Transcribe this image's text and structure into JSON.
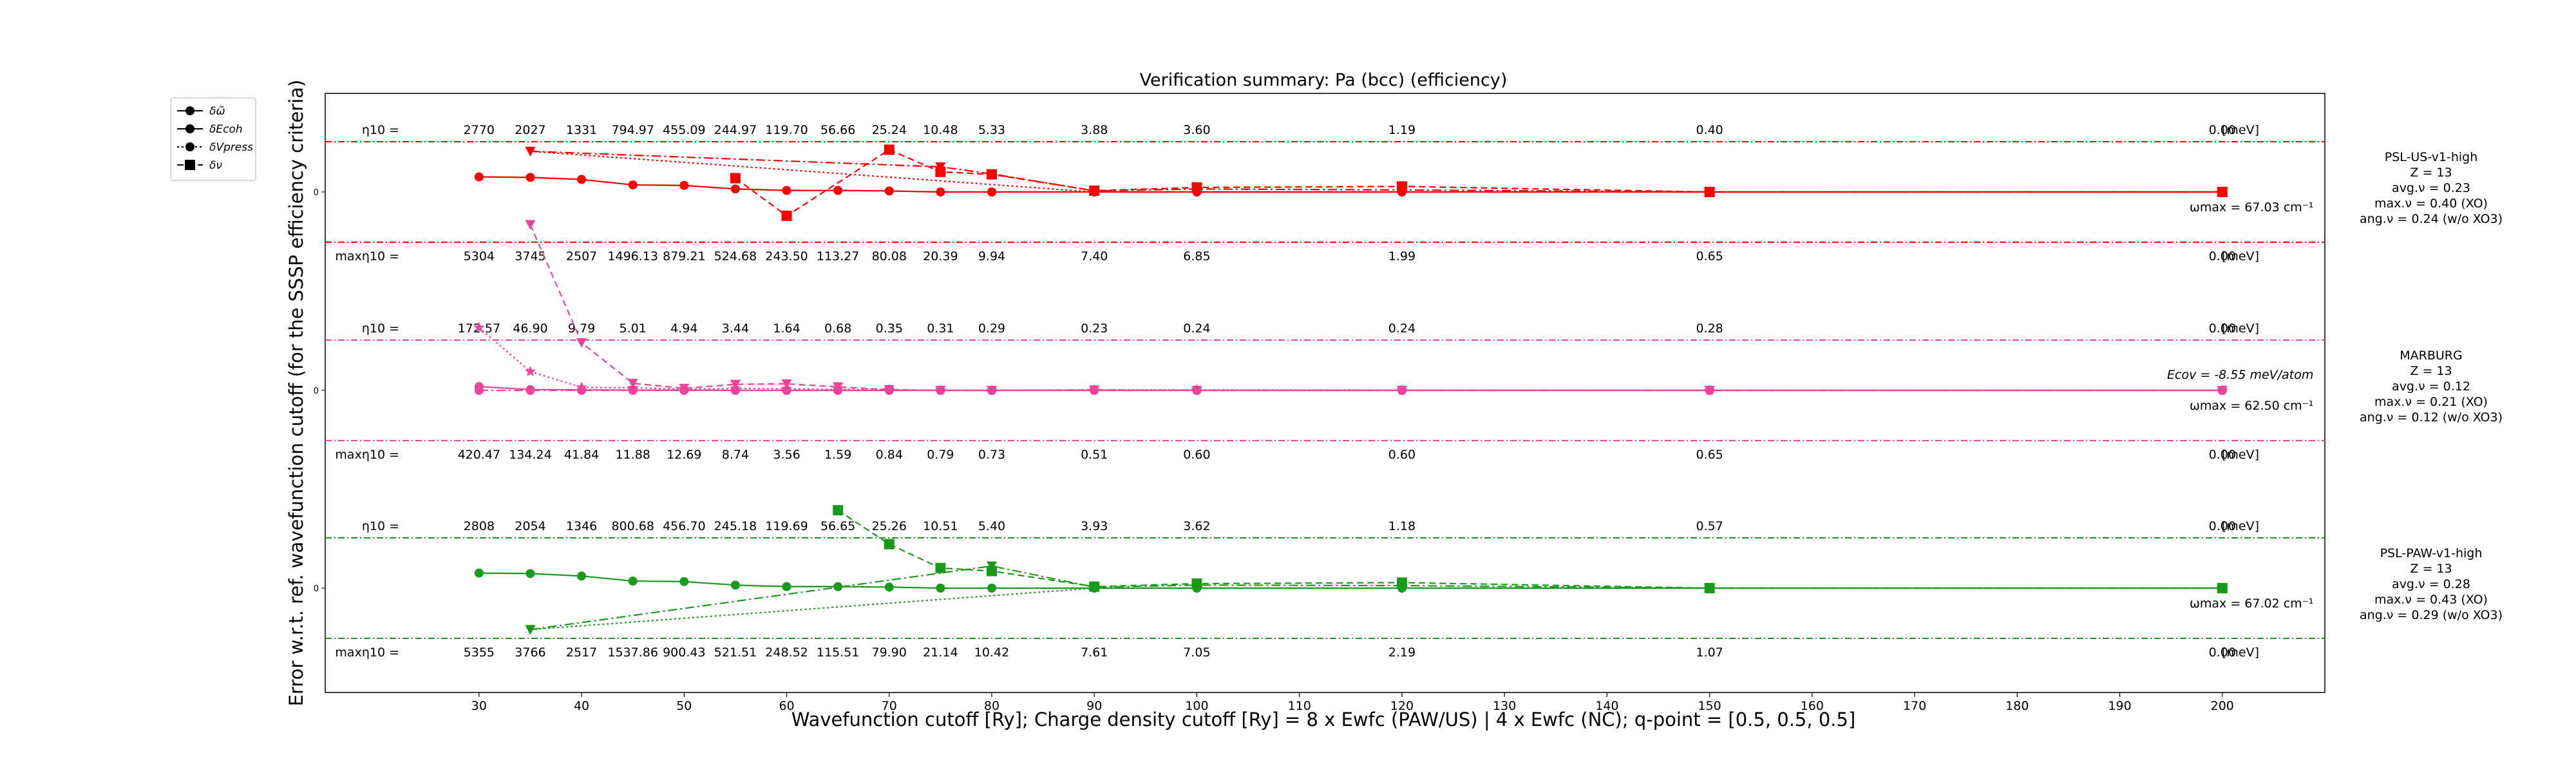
{
  "chart_data": {
    "type": "line",
    "title": "Verification summary: Pa (bcc) (efficiency)",
    "xlabel": "Wavefunction cutoff [Ry]; Charge density cutoff [Ry] = 8 x Ewfc (PAW/US) | 4 x Ewfc (NC); q-point = [0.5, 0.5, 0.5]",
    "ylabel": "Error w.r.t. ref. wavefunction cutoff (for the SSSP efficiency criteria)",
    "xlim": [
      15,
      210
    ],
    "x_ticks": [
      30,
      40,
      50,
      60,
      70,
      80,
      90,
      100,
      110,
      120,
      130,
      140,
      150,
      160,
      170,
      180,
      190,
      200
    ],
    "zero_label": "0",
    "unit_label": "[meV]",
    "eta_label": "η10 =",
    "max_eta_label": "maxη10 =",
    "legend": {
      "position": "top-left outside",
      "entries": [
        {
          "label": "δω̃",
          "style": "solid",
          "marker": "circle"
        },
        {
          "label": "δEcoh",
          "style": "dashdot",
          "marker": "circle"
        },
        {
          "label": "δVpress",
          "style": "dotted",
          "marker": "circle"
        },
        {
          "label": "δν",
          "style": "dashed",
          "marker": "square"
        }
      ]
    },
    "panels": [
      {
        "name": "PSL-US-v1-high",
        "color": "#ff0000",
        "side_info": [
          "PSL-US-v1-high",
          "Z = 13",
          "avg.ν = 0.23",
          "max.ν = 0.40 (XO)",
          "ang.ν = 0.24 (w/o XO3)"
        ],
        "right_note": "ωmax = 67.03 cm⁻¹",
        "eta": [
          "2770",
          "2027",
          "1331",
          "794.97",
          "455.09",
          "244.97",
          "119.70",
          "56.66",
          "25.24",
          "10.48",
          "5.33",
          "3.88",
          "3.60",
          "1.19",
          "0.40",
          "0.00"
        ],
        "max_eta": [
          "5304",
          "3745",
          "2507",
          "1496.13",
          "879.21",
          "524.68",
          "243.50",
          "113.27",
          "80.08",
          "20.39",
          "9.94",
          "7.40",
          "6.85",
          "1.99",
          "0.65",
          "0.00"
        ],
        "series": [
          {
            "name": "δω̃",
            "style": "solid",
            "marker": "circle",
            "x": [
              30,
              35,
              40,
              45,
              50,
              55,
              60,
              65,
              70,
              75,
              80,
              90,
              100,
              120,
              150,
              200
            ],
            "y": [
              0.6,
              0.58,
              0.5,
              0.28,
              0.26,
              0.12,
              0.06,
              0.06,
              0.04,
              0.0,
              0.0,
              0.0,
              0.0,
              0.0,
              0.0,
              0.0
            ]
          },
          {
            "name": "δEcoh",
            "style": "dashdot",
            "marker": "triangle-down",
            "x": [
              35,
              75,
              80,
              90,
              100,
              120,
              150,
              200
            ],
            "y": [
              1.62,
              1.0,
              0.72,
              0.04,
              0.12,
              0.08,
              0.0,
              0.0
            ]
          },
          {
            "name": "δVpress",
            "style": "dotted",
            "marker": "triangle-down",
            "x": [
              35,
              90,
              100,
              120,
              150,
              200
            ],
            "y": [
              1.62,
              0.0,
              0.0,
              0.0,
              0.0,
              0.0
            ]
          },
          {
            "name": "δν",
            "style": "dashed",
            "marker": "square",
            "x": [
              55,
              60,
              70,
              75,
              80,
              90,
              100,
              120,
              150,
              200
            ],
            "y": [
              0.55,
              -0.95,
              1.68,
              0.8,
              0.7,
              0.05,
              0.18,
              0.22,
              0.0,
              0.0
            ]
          }
        ]
      },
      {
        "name": "MARBURG",
        "color": "#e8459b",
        "side_info": [
          "MARBURG",
          "Z = 13",
          "avg.ν = 0.12",
          "max.ν = 0.21 (XO)",
          "ang.ν = 0.12 (w/o XO3)"
        ],
        "right_note": "ωmax = 62.50 cm⁻¹",
        "right_note_2": "Ecov = -8.55 meV/atom",
        "eta": [
          "172.57",
          "46.90",
          "9.79",
          "5.01",
          "4.94",
          "3.44",
          "1.64",
          "0.68",
          "0.35",
          "0.31",
          "0.29",
          "0.23",
          "0.24",
          "0.24",
          "0.28",
          "0.00"
        ],
        "max_eta": [
          "420.47",
          "134.24",
          "41.84",
          "11.88",
          "12.69",
          "8.74",
          "3.56",
          "1.59",
          "0.84",
          "0.79",
          "0.73",
          "0.51",
          "0.60",
          "0.60",
          "0.65",
          "0.00"
        ],
        "series": [
          {
            "name": "δω̃",
            "style": "solid",
            "marker": "circle",
            "x": [
              30,
              35,
              40,
              45,
              50,
              55,
              60,
              65,
              70,
              75,
              80,
              90,
              100,
              120,
              150,
              200
            ],
            "y": [
              0.15,
              0.03,
              0.02,
              0.01,
              0.01,
              0.0,
              0.0,
              0.0,
              0.0,
              0.0,
              0.0,
              0.0,
              0.0,
              0.0,
              0.0,
              0.0
            ]
          },
          {
            "name": "δEcoh",
            "style": "dashdot",
            "marker": "circle",
            "x": [
              30,
              35,
              40,
              45,
              50,
              55,
              60,
              65,
              70,
              75,
              80,
              90,
              100,
              120,
              150,
              200
            ],
            "y": [
              0.0,
              0.0,
              0.0,
              0.0,
              0.0,
              0.0,
              0.0,
              0.0,
              0.0,
              0.0,
              0.0,
              0.0,
              0.0,
              0.0,
              0.0,
              0.0
            ]
          },
          {
            "name": "δVpress",
            "style": "dotted",
            "marker": "star",
            "x": [
              30,
              35,
              40,
              45,
              50,
              55,
              60,
              65,
              70,
              75,
              80,
              90,
              100,
              120,
              150,
              200
            ],
            "y": [
              2.5,
              0.75,
              0.12,
              0.1,
              0.05,
              0.08,
              0.06,
              0.04,
              0.03,
              0.0,
              0.0,
              0.02,
              0.02,
              0.01,
              0.0,
              0.0
            ]
          },
          {
            "name": "δν",
            "style": "dashed",
            "marker": "triangle-down",
            "x": [
              35,
              40,
              45,
              50,
              55,
              60,
              65,
              70,
              75,
              80,
              90,
              100,
              120,
              150,
              200
            ],
            "y": [
              6.6,
              1.9,
              0.28,
              0.08,
              0.24,
              0.26,
              0.14,
              0.03,
              0.0,
              0.0,
              0.02,
              0.0,
              0.0,
              0.0,
              0.0
            ]
          }
        ]
      },
      {
        "name": "PSL-PAW-v1-high",
        "color": "#1a9a1a",
        "side_info": [
          "PSL-PAW-v1-high",
          "Z = 13",
          "avg.ν = 0.28",
          "max.ν = 0.43 (XO)",
          "ang.ν = 0.29 (w/o XO3)"
        ],
        "right_note": "ωmax = 67.02 cm⁻¹",
        "eta": [
          "2808",
          "2054",
          "1346",
          "800.68",
          "456.70",
          "245.18",
          "119.69",
          "56.65",
          "25.26",
          "10.51",
          "5.40",
          "3.93",
          "3.62",
          "1.18",
          "0.57",
          "0.00"
        ],
        "max_eta": [
          "5355",
          "3766",
          "2517",
          "1537.86",
          "900.43",
          "521.51",
          "248.52",
          "115.51",
          "79.90",
          "21.14",
          "10.42",
          "7.61",
          "7.05",
          "2.19",
          "1.07",
          "0.00"
        ],
        "series": [
          {
            "name": "δω̃",
            "style": "solid",
            "marker": "circle",
            "x": [
              30,
              35,
              40,
              45,
              50,
              55,
              60,
              65,
              70,
              75,
              80,
              90,
              100,
              120,
              150,
              200
            ],
            "y": [
              0.6,
              0.58,
              0.48,
              0.28,
              0.26,
              0.12,
              0.06,
              0.06,
              0.04,
              0.0,
              0.0,
              0.0,
              0.0,
              0.0,
              0.0,
              0.0
            ]
          },
          {
            "name": "δEcoh",
            "style": "dashdot",
            "marker": "triangle-down",
            "x": [
              35,
              80,
              90,
              100,
              120,
              150,
              200
            ],
            "y": [
              -1.65,
              0.88,
              0.04,
              0.12,
              0.1,
              0.0,
              0.0
            ]
          },
          {
            "name": "δVpress",
            "style": "dotted",
            "marker": "triangle-down",
            "x": [
              35,
              90,
              100,
              120,
              150,
              200
            ],
            "y": [
              -1.65,
              0.0,
              0.0,
              0.0,
              0.0,
              0.0
            ]
          },
          {
            "name": "δν",
            "style": "dashed",
            "marker": "square",
            "x": [
              65,
              70,
              75,
              80,
              90,
              100,
              120,
              150,
              200
            ],
            "y": [
              3.1,
              1.75,
              0.8,
              0.68,
              0.06,
              0.18,
              0.22,
              0.0,
              0.0
            ]
          }
        ]
      }
    ]
  }
}
